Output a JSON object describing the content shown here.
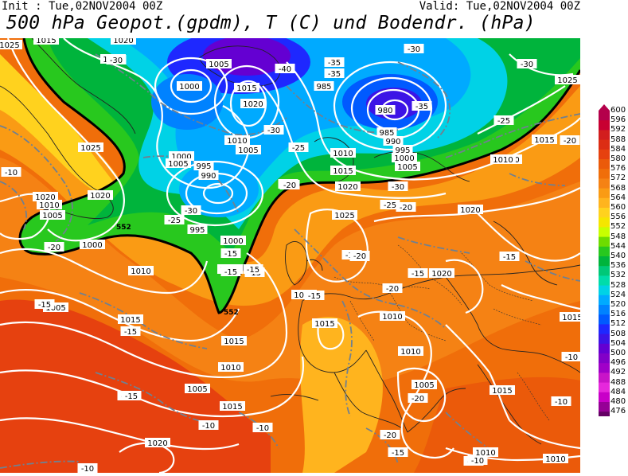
{
  "header": {
    "init": "Init : Tue,02NOV2004 00Z",
    "valid": "Valid: Tue,02NOV2004 00Z",
    "title": "500 hPa Geopot.(gpdm), T (C) und Bodendr. (hPa)"
  },
  "colorbar": {
    "levels": [
      "600",
      "596",
      "592",
      "588",
      "584",
      "580",
      "576",
      "572",
      "568",
      "564",
      "560",
      "556",
      "552",
      "548",
      "544",
      "540",
      "536",
      "532",
      "528",
      "524",
      "520",
      "516",
      "512",
      "508",
      "504",
      "500",
      "496",
      "492",
      "488",
      "484",
      "480",
      "476"
    ],
    "colors": [
      "#b4004b",
      "#c80032",
      "#d21e1e",
      "#dc2d14",
      "#e6410f",
      "#eb5a0a",
      "#f06e0a",
      "#f58214",
      "#fa9b14",
      "#ffb41e",
      "#ffd21e",
      "#f5e600",
      "#c8ff00",
      "#6edc00",
      "#28c81e",
      "#00b43c",
      "#00c878",
      "#00dcaa",
      "#00d2e6",
      "#00aaff",
      "#0082ff",
      "#005aff",
      "#1e28ff",
      "#3c14e6",
      "#6400d2",
      "#8200c8",
      "#a000c8",
      "#c814c8",
      "#e628dc",
      "#c800c8",
      "#960096",
      "#640064"
    ]
  },
  "map": {
    "pressure_labels": [
      {
        "text": "1025"
      },
      {
        "text": "1015"
      },
      {
        "text": "1010"
      },
      {
        "text": "1020"
      },
      {
        "text": "1005"
      },
      {
        "text": "1000"
      },
      {
        "text": "1015"
      },
      {
        "text": "1020"
      },
      {
        "text": "985"
      },
      {
        "text": "980"
      },
      {
        "text": "985"
      },
      {
        "text": "990"
      },
      {
        "text": "995"
      },
      {
        "text": "1000"
      },
      {
        "text": "1005"
      },
      {
        "text": "1025"
      },
      {
        "text": "1010"
      },
      {
        "text": "1005"
      },
      {
        "text": "1000"
      },
      {
        "text": "995"
      },
      {
        "text": "990"
      },
      {
        "text": "1010"
      },
      {
        "text": "1015"
      },
      {
        "text": "1020"
      },
      {
        "text": "1025"
      },
      {
        "text": "1015"
      },
      {
        "text": "1010"
      },
      {
        "text": "1005"
      },
      {
        "text": "1020"
      },
      {
        "text": "1000"
      },
      {
        "text": "995"
      },
      {
        "text": "1000"
      },
      {
        "text": "1000"
      },
      {
        "text": "1010"
      },
      {
        "text": "1005"
      },
      {
        "text": "1015"
      },
      {
        "text": "1005"
      },
      {
        "text": "1010"
      },
      {
        "text": "1020"
      },
      {
        "text": "1020"
      },
      {
        "text": "1020"
      },
      {
        "text": "1015"
      },
      {
        "text": "1015"
      },
      {
        "text": "1010"
      },
      {
        "text": "1005"
      },
      {
        "text": "1015"
      },
      {
        "text": "1010"
      },
      {
        "text": "1015"
      },
      {
        "text": "1020"
      },
      {
        "text": "1010"
      },
      {
        "text": "1010"
      },
      {
        "text": "1025"
      },
      {
        "text": "1020"
      },
      {
        "text": "1010"
      },
      {
        "text": "1010"
      },
      {
        "text": "1025"
      },
      {
        "text": "1005"
      },
      {
        "text": "1010"
      },
      {
        "text": "1025"
      },
      {
        "text": "1015"
      }
    ],
    "temp_labels": [
      {
        "text": "-30"
      },
      {
        "text": "-40"
      },
      {
        "text": "-35"
      },
      {
        "text": "-30"
      },
      {
        "text": "-35"
      },
      {
        "text": "-30"
      },
      {
        "text": "-25"
      },
      {
        "text": "-20"
      },
      {
        "text": "-10"
      },
      {
        "text": "-25"
      },
      {
        "text": "-30"
      },
      {
        "text": "-30"
      },
      {
        "text": "-35"
      },
      {
        "text": "-30"
      },
      {
        "text": "-25"
      },
      {
        "text": "-20"
      },
      {
        "text": "-25"
      },
      {
        "text": "-20"
      },
      {
        "text": "-15"
      },
      {
        "text": "-15"
      },
      {
        "text": "-15"
      },
      {
        "text": "-15"
      },
      {
        "text": "-15"
      },
      {
        "text": "-15"
      },
      {
        "text": "-15"
      },
      {
        "text": "-20"
      },
      {
        "text": "-20"
      },
      {
        "text": "-15"
      },
      {
        "text": "-10"
      },
      {
        "text": "-10"
      },
      {
        "text": "-20"
      },
      {
        "text": "-20"
      },
      {
        "text": "-15"
      },
      {
        "text": "-10"
      },
      {
        "text": "-10"
      },
      {
        "text": "-10"
      },
      {
        "text": "-15"
      },
      {
        "text": "-15"
      },
      {
        "text": "-10"
      },
      {
        "text": "-15"
      },
      {
        "text": "-20"
      },
      {
        "text": "-15"
      },
      {
        "text": "-10"
      },
      {
        "text": "-20"
      },
      {
        "text": "-20"
      }
    ],
    "geopot_labels": [
      {
        "text": "552"
      },
      {
        "text": "552"
      }
    ]
  }
}
